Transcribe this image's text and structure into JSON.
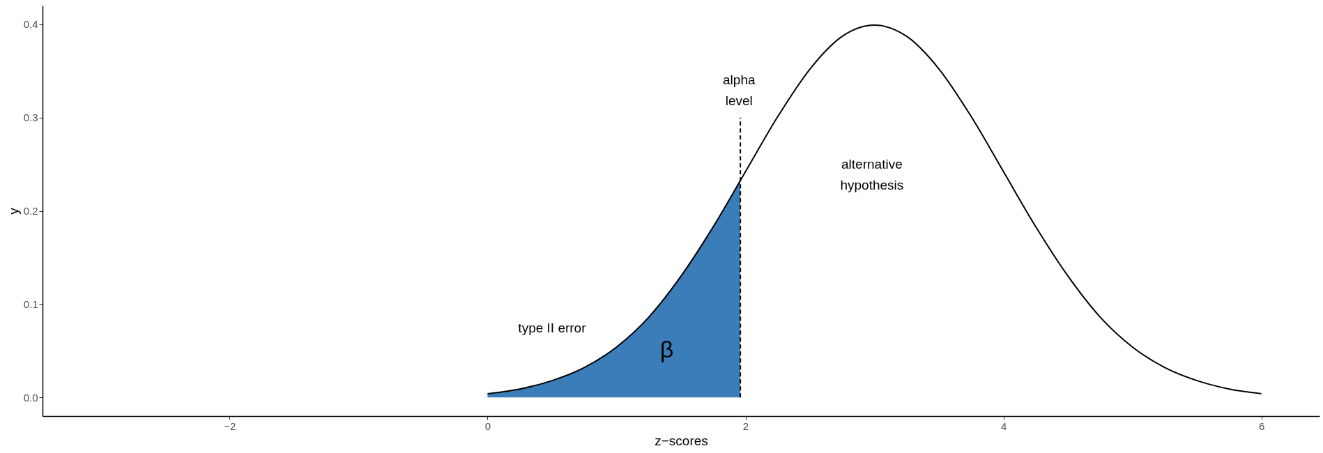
{
  "chart_data": {
    "type": "line",
    "xlabel": "z−scores",
    "ylabel": "y",
    "xlim": [
      -3.45,
      6.45
    ],
    "ylim": [
      -0.02,
      0.42
    ],
    "xticks": [
      {
        "value": -2,
        "label": "−2"
      },
      0,
      2,
      4,
      6
    ],
    "yticks": [
      {
        "value": 0,
        "label": "0.0"
      },
      0.1,
      0.2,
      0.3,
      0.4
    ],
    "grid": false,
    "marker": "none",
    "series": [
      {
        "type": "area",
        "color": "#3a7db8",
        "x": [
          0,
          0.25,
          0.5,
          0.75,
          1,
          1.25,
          1.5,
          1.75,
          1.96
        ],
        "values": [
          0.004,
          0.009,
          0.018,
          0.032,
          0.054,
          0.086,
          0.13,
          0.183,
          0.232
        ]
      },
      {
        "type": "line",
        "color": "#000000",
        "line_style": "solid",
        "x": [
          0,
          0.25,
          0.5,
          0.75,
          1,
          1.25,
          1.5,
          1.75,
          2,
          2.25,
          2.5,
          2.75,
          3,
          3.25,
          3.5,
          3.75,
          4,
          4.25,
          4.5,
          4.75,
          5,
          5.25,
          5.5,
          5.75,
          6
        ],
        "values": [
          0.004,
          0.009,
          0.018,
          0.032,
          0.054,
          0.086,
          0.13,
          0.183,
          0.242,
          0.301,
          0.352,
          0.387,
          0.399,
          0.387,
          0.352,
          0.301,
          0.242,
          0.183,
          0.13,
          0.086,
          0.054,
          0.032,
          0.018,
          0.009,
          0.004
        ]
      },
      {
        "type": "line",
        "color": "#000000",
        "line_style": "dashed",
        "x": [
          1.96,
          1.96
        ],
        "values": [
          0,
          0.3
        ]
      }
    ],
    "annotations": [
      "alpha\nlevel",
      "alternative\nhypothesis",
      "type II error",
      "β"
    ]
  }
}
